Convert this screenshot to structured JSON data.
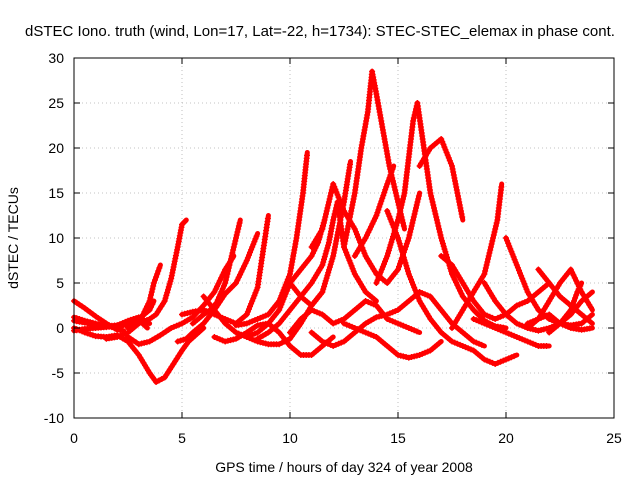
{
  "chart_data": {
    "type": "scatter",
    "title": "dSTEC Iono. truth (wind, Lon=17, Lat=-22, h=1734): STEC-STEC_elemax in phase cont.",
    "xlabel": "GPS time / hours of day 324 of year 2008",
    "ylabel": "dSTEC  / TECUs",
    "xlim": [
      0,
      25
    ],
    "ylim": [
      -10,
      30
    ],
    "xticks": [
      "0",
      "5",
      "10",
      "15",
      "20",
      "25"
    ],
    "yticks": [
      "-10",
      "-5",
      "0",
      "5",
      "10",
      "15",
      "20",
      "25",
      "30"
    ],
    "grid": true,
    "marker": "+",
    "color": "#ff0000",
    "series": [
      {
        "x": [
          0.0,
          0.5,
          1.0,
          1.5,
          2.0,
          2.5,
          3.0,
          3.5,
          3.7
        ],
        "y": [
          -0.3,
          -0.1,
          0.0,
          0.1,
          0.3,
          0.6,
          1.0,
          2.0,
          3.0
        ]
      },
      {
        "x": [
          0.0,
          0.5,
          1.0,
          1.5,
          2.0,
          2.3
        ],
        "y": [
          3.0,
          2.2,
          1.3,
          0.5,
          -0.2,
          -0.3
        ]
      },
      {
        "x": [
          0.0,
          0.5,
          1.0,
          1.5,
          2.0,
          2.5,
          3.0,
          3.4
        ],
        "y": [
          1.2,
          0.8,
          0.5,
          0.2,
          0.0,
          0.5,
          0.9,
          0.0
        ]
      },
      {
        "x": [
          0.0,
          0.5,
          1.0,
          1.5,
          2.0,
          2.5,
          3.0,
          3.5
        ],
        "y": [
          0.8,
          0.6,
          0.3,
          0.2,
          0.3,
          0.8,
          1.2,
          0.5
        ]
      },
      {
        "x": [
          0.0,
          0.5,
          1.0,
          1.5,
          2.0,
          2.5,
          3.0,
          3.5,
          3.8,
          4.2,
          4.6,
          5.0,
          5.3,
          6.0
        ],
        "y": [
          0.0,
          -0.5,
          -0.9,
          -1.0,
          -0.8,
          -1.5,
          -3.0,
          -5.0,
          -6.0,
          -5.5,
          -4.0,
          -2.5,
          -1.5,
          0.0
        ]
      },
      {
        "x": [
          1.5,
          2.0,
          2.5,
          3.0,
          3.5,
          3.8,
          4.2,
          4.5,
          4.8,
          5.0,
          5.2
        ],
        "y": [
          -1.2,
          -1.0,
          -0.5,
          0.5,
          1.0,
          1.5,
          3.0,
          5.5,
          9.0,
          11.5,
          12.0
        ]
      },
      {
        "x": [
          2.5,
          3.0,
          3.5,
          4.0,
          4.5,
          5.0,
          5.5,
          6.0,
          6.5,
          7.0,
          7.4
        ],
        "y": [
          -1.0,
          -1.8,
          -1.5,
          -0.8,
          0.0,
          0.5,
          1.2,
          2.5,
          4.0,
          6.5,
          8.0
        ]
      },
      {
        "x": [
          2.5,
          3.0,
          3.2,
          3.5,
          3.7,
          4.0
        ],
        "y": [
          0.0,
          0.5,
          1.5,
          3.0,
          5.0,
          7.0
        ]
      },
      {
        "x": [
          4.8,
          5.2,
          5.5,
          6.0,
          6.5,
          7.0,
          7.5,
          8.0,
          8.5
        ],
        "y": [
          -1.5,
          -1.2,
          -0.5,
          0.5,
          2.0,
          3.8,
          5.0,
          7.5,
          10.5
        ]
      },
      {
        "x": [
          5.0,
          5.5,
          6.0,
          6.5,
          7.0,
          7.5,
          8.0,
          8.5,
          9.0
        ],
        "y": [
          1.5,
          1.8,
          2.0,
          1.5,
          1.0,
          0.5,
          1.5,
          4.5,
          12.5
        ]
      },
      {
        "x": [
          5.5,
          6.0,
          6.3,
          6.6,
          7.0,
          7.3,
          7.7
        ],
        "y": [
          0.5,
          1.5,
          2.0,
          2.8,
          5.0,
          8.0,
          12.0
        ]
      },
      {
        "x": [
          6.0,
          6.5,
          7.0,
          7.5,
          8.0,
          8.5,
          9.0,
          9.5,
          10.0,
          10.5,
          11.0,
          11.5
        ],
        "y": [
          3.5,
          2.0,
          0.5,
          -0.5,
          -1.0,
          -1.5,
          -1.8,
          -1.8,
          -1.2,
          0.5,
          2.5,
          4.0
        ]
      },
      {
        "x": [
          7.5,
          8.0,
          8.5,
          9.0,
          9.5,
          10.0,
          10.3,
          10.6,
          10.8
        ],
        "y": [
          0.3,
          0.5,
          1.0,
          1.5,
          3.0,
          6.0,
          10.0,
          15.0,
          19.5
        ]
      },
      {
        "x": [
          6.5,
          7.0,
          7.5,
          8.0,
          8.5,
          9.0,
          9.5,
          10.0,
          10.5,
          11.0,
          11.5,
          12.0
        ],
        "y": [
          -1.0,
          -1.5,
          -1.2,
          -0.5,
          0.3,
          0.5,
          -0.5,
          -2.0,
          -3.0,
          -3.0,
          -2.0,
          -1.0
        ]
      },
      {
        "x": [
          8.0,
          8.5,
          9.0,
          9.5,
          10.0,
          10.5,
          11.0,
          11.3,
          11.6
        ],
        "y": [
          -1.0,
          -0.5,
          0.5,
          2.0,
          5.0,
          6.5,
          8.0,
          9.5,
          12.0
        ]
      },
      {
        "x": [
          8.5,
          9.0,
          9.5,
          10.0,
          10.5,
          11.0,
          11.5,
          11.8,
          12.0,
          12.2,
          12.5,
          13.0,
          13.5,
          14.0
        ],
        "y": [
          -1.2,
          -0.5,
          0.5,
          2.0,
          3.5,
          5.0,
          7.0,
          9.5,
          12.0,
          14.0,
          9.0,
          6.0,
          4.0,
          3.0
        ]
      },
      {
        "x": [
          10.0,
          10.5,
          11.0,
          11.5,
          12.0,
          12.5,
          12.8
        ],
        "y": [
          5.0,
          3.5,
          2.5,
          4.0,
          8.0,
          14.0,
          18.5
        ]
      },
      {
        "x": [
          11.0,
          11.5,
          12.0,
          12.5,
          13.0,
          13.5,
          14.0,
          14.5,
          15.0,
          15.5,
          16.0
        ],
        "y": [
          9.0,
          11.0,
          16.0,
          13.0,
          11.0,
          8.0,
          6.0,
          5.0,
          6.5,
          10.0,
          15.0
        ]
      },
      {
        "x": [
          10.0,
          10.5,
          11.0,
          11.5,
          12.0,
          12.5,
          13.0,
          13.5,
          14.0,
          14.5,
          15.0,
          15.5,
          16.0
        ],
        "y": [
          -0.5,
          1.0,
          2.0,
          1.5,
          0.5,
          1.0,
          2.0,
          3.0,
          2.5,
          1.0,
          0.5,
          0.0,
          -0.5
        ]
      },
      {
        "x": [
          11.0,
          11.5,
          12.0,
          12.5,
          13.0,
          13.5,
          14.0,
          14.5,
          15.0,
          15.5,
          16.0,
          16.5,
          17.0,
          17.5,
          18.0,
          18.5,
          19.0
        ],
        "y": [
          -0.5,
          -1.5,
          -2.0,
          -1.5,
          -0.5,
          0.5,
          1.2,
          1.5,
          2.0,
          3.0,
          4.0,
          3.5,
          2.0,
          0.5,
          -0.5,
          -1.5,
          -2.0
        ]
      },
      {
        "x": [
          12.5,
          13.0,
          13.3,
          13.6,
          13.8
        ],
        "y": [
          9.0,
          15.0,
          20.0,
          24.0,
          28.5
        ]
      },
      {
        "x": [
          13.8,
          14.0,
          14.3,
          14.6,
          15.0,
          15.3
        ],
        "y": [
          28.5,
          26.0,
          22.0,
          18.0,
          14.0,
          11.0
        ]
      },
      {
        "x": [
          13.0,
          13.5,
          14.0,
          14.5,
          14.8
        ],
        "y": [
          8.0,
          10.0,
          12.5,
          16.0,
          18.0
        ]
      },
      {
        "x": [
          14.0,
          14.5,
          15.0,
          15.3,
          15.5,
          15.7,
          15.9
        ],
        "y": [
          5.0,
          8.0,
          12.0,
          15.0,
          19.0,
          23.0,
          25.0
        ]
      },
      {
        "x": [
          15.9,
          16.2,
          16.5,
          17.0,
          17.5,
          18.0,
          18.5,
          19.0,
          19.5,
          20.0
        ],
        "y": [
          25.0,
          20.0,
          15.0,
          10.0,
          6.0,
          3.5,
          2.0,
          0.8,
          0.2,
          0.0
        ]
      },
      {
        "x": [
          14.5,
          15.0,
          15.5,
          16.0,
          16.5,
          17.0,
          17.5,
          18.0,
          18.5,
          19.0,
          19.5,
          20.0,
          20.5
        ],
        "y": [
          13.0,
          10.0,
          6.0,
          3.0,
          1.0,
          -0.5,
          -1.5,
          -2.0,
          -2.5,
          -3.5,
          -4.0,
          -3.5,
          -3.0
        ]
      },
      {
        "x": [
          12.5,
          13.0,
          13.5,
          14.0,
          14.5,
          15.0,
          15.5,
          16.0,
          16.5,
          17.0
        ],
        "y": [
          0.5,
          0.0,
          -0.5,
          -1.0,
          -2.0,
          -3.0,
          -3.3,
          -3.0,
          -2.5,
          -1.5
        ]
      },
      {
        "x": [
          16.0,
          16.5,
          17.0,
          17.5,
          18.0
        ],
        "y": [
          18.0,
          20.0,
          21.0,
          18.0,
          12.0
        ]
      },
      {
        "x": [
          17.0,
          17.5,
          18.0,
          18.5,
          19.0,
          19.5,
          20.0,
          20.5,
          21.0,
          21.5,
          22.0
        ],
        "y": [
          8.0,
          7.0,
          5.0,
          3.0,
          1.5,
          1.0,
          1.5,
          2.5,
          3.0,
          4.0,
          5.0
        ]
      },
      {
        "x": [
          17.5,
          18.0,
          18.5,
          19.0,
          19.3,
          19.6,
          19.8
        ],
        "y": [
          0.0,
          2.0,
          4.0,
          6.0,
          9.0,
          12.0,
          16.0
        ]
      },
      {
        "x": [
          18.5,
          19.0,
          19.5,
          20.0,
          20.5,
          21.0,
          21.5,
          22.0
        ],
        "y": [
          1.0,
          0.5,
          0.0,
          -0.5,
          -1.0,
          -1.5,
          -2.0,
          -2.0
        ]
      },
      {
        "x": [
          19.0,
          19.5,
          20.0,
          20.5,
          21.0,
          21.5,
          22.0,
          22.5,
          23.0,
          23.5,
          24.0
        ],
        "y": [
          5.0,
          3.0,
          1.5,
          0.5,
          0.0,
          -0.3,
          0.0,
          0.5,
          1.5,
          3.0,
          4.0
        ]
      },
      {
        "x": [
          20.0,
          20.5,
          21.0,
          21.5,
          22.0,
          22.5,
          23.0,
          23.5,
          24.0
        ],
        "y": [
          10.0,
          7.0,
          4.0,
          2.0,
          1.0,
          0.5,
          0.3,
          0.5,
          1.5
        ]
      },
      {
        "x": [
          21.0,
          21.5,
          22.0,
          22.5,
          23.0,
          23.5,
          24.0
        ],
        "y": [
          0.0,
          1.0,
          3.0,
          5.0,
          6.5,
          4.0,
          2.0
        ]
      },
      {
        "x": [
          21.5,
          22.0,
          22.5,
          23.0,
          23.5,
          24.0
        ],
        "y": [
          6.5,
          5.0,
          3.5,
          2.5,
          1.5,
          0.5
        ]
      },
      {
        "x": [
          21.0,
          21.5,
          22.0,
          22.5,
          23.0,
          23.5,
          24.0
        ],
        "y": [
          0.5,
          1.0,
          1.5,
          0.5,
          0.0,
          -0.2,
          0.0
        ]
      },
      {
        "x": [
          22.0,
          22.5,
          23.0,
          23.3,
          23.5
        ],
        "y": [
          -0.5,
          0.5,
          2.0,
          4.0,
          5.0
        ]
      }
    ]
  }
}
